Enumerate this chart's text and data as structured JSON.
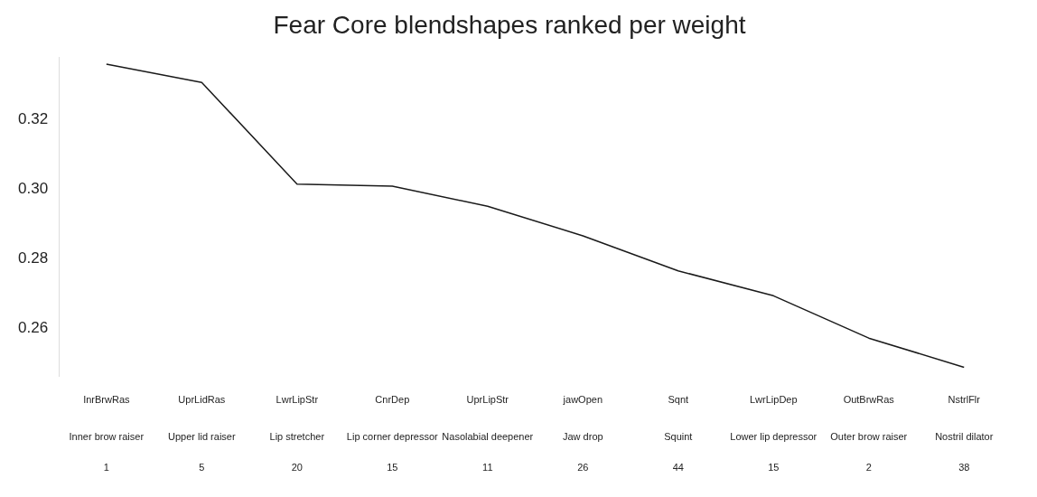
{
  "chart_data": {
    "type": "line",
    "title": "Fear Core blendshapes ranked per weight",
    "categories": [
      "InrBrwRas",
      "UprLidRas",
      "LwrLipStr",
      "CnrDep",
      "UprLipStr",
      "jawOpen",
      "Sqnt",
      "LwrLipDep",
      "OutBrwRas",
      "NstrlFlr"
    ],
    "annotations": [
      "Inner brow raiser",
      "1",
      "Upper lid raiser",
      "5",
      "Lip stretcher",
      "20",
      "Lip corner depressor",
      "15",
      "Nasolabial deepener",
      "11",
      "Jaw drop",
      "26",
      "Squint",
      "44",
      "Lower lip depressor",
      "15",
      "Outer brow raiser",
      "2",
      "Nostril dilator",
      "38"
    ],
    "series": [
      {
        "color": "#1a1a1a",
        "values": [
          0.3361,
          0.3308,
          0.3015,
          0.3009,
          0.2951,
          0.2866,
          0.2765,
          0.2693,
          0.2571,
          0.2487
        ]
      }
    ],
    "ylim": [
      0.246,
      0.338
    ],
    "yticks": [
      0.26,
      0.28,
      {
        "value": 0.3,
        "label": "0.30"
      },
      0.32
    ],
    "grid": false,
    "legend": false,
    "marker": "none",
    "line_style": "solid"
  }
}
